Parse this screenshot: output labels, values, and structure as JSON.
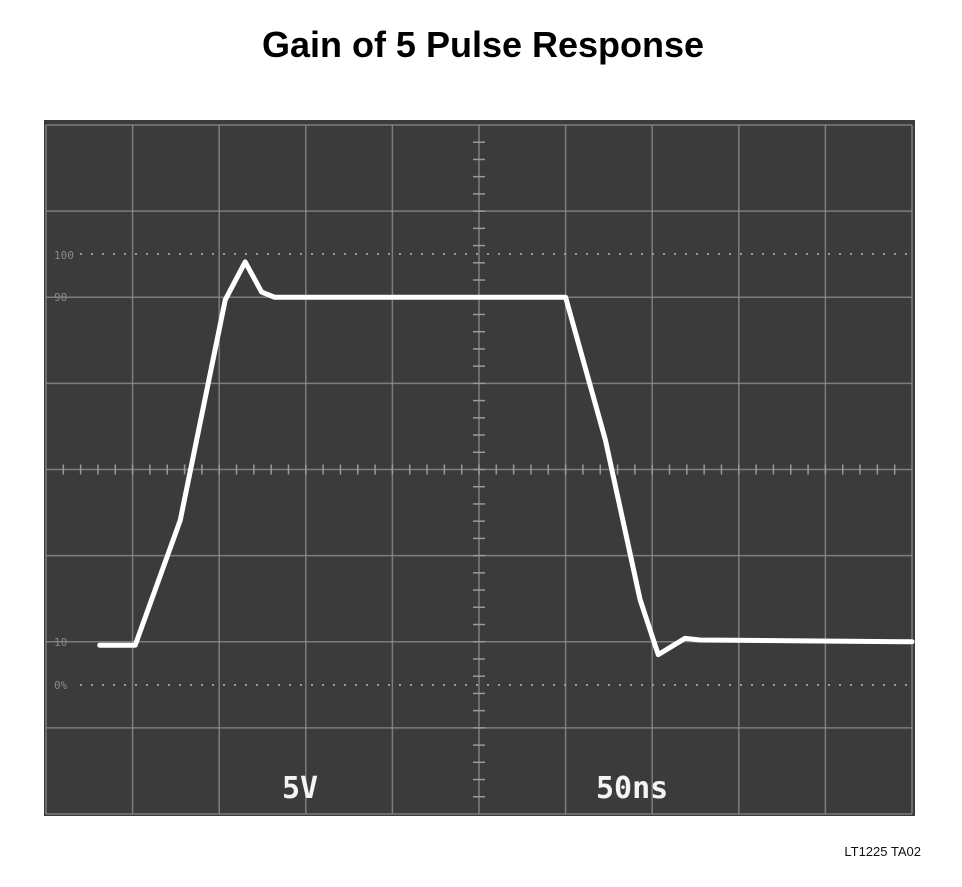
{
  "chart_data": {
    "type": "line",
    "title": "Gain of 5 Pulse Response",
    "x": [
      0.62,
      1.03,
      1.55,
      2.07,
      2.3,
      2.49,
      2.64,
      6.0,
      6.46,
      6.86,
      7.07,
      7.38,
      7.55,
      10.0
    ],
    "values": [
      1.96,
      1.96,
      3.41,
      5.97,
      6.41,
      6.06,
      6.0,
      6.0,
      4.34,
      2.49,
      1.85,
      2.04,
      2.02,
      2.0
    ],
    "color": "#ffffff",
    "xlim": [
      0,
      10
    ],
    "ylim": [
      0,
      8
    ],
    "xticks": [
      0,
      1,
      2,
      3,
      4,
      5,
      6,
      7,
      8,
      9,
      10
    ],
    "yticks": [
      0,
      1,
      2,
      3,
      4,
      5,
      6,
      7,
      8
    ],
    "grid": true,
    "graticule_labels": [
      "100",
      "90",
      "10",
      "0%"
    ],
    "vertical_scale": "5V",
    "horizontal_scale": "50ns",
    "figure_id": "LT1225 TA02"
  }
}
